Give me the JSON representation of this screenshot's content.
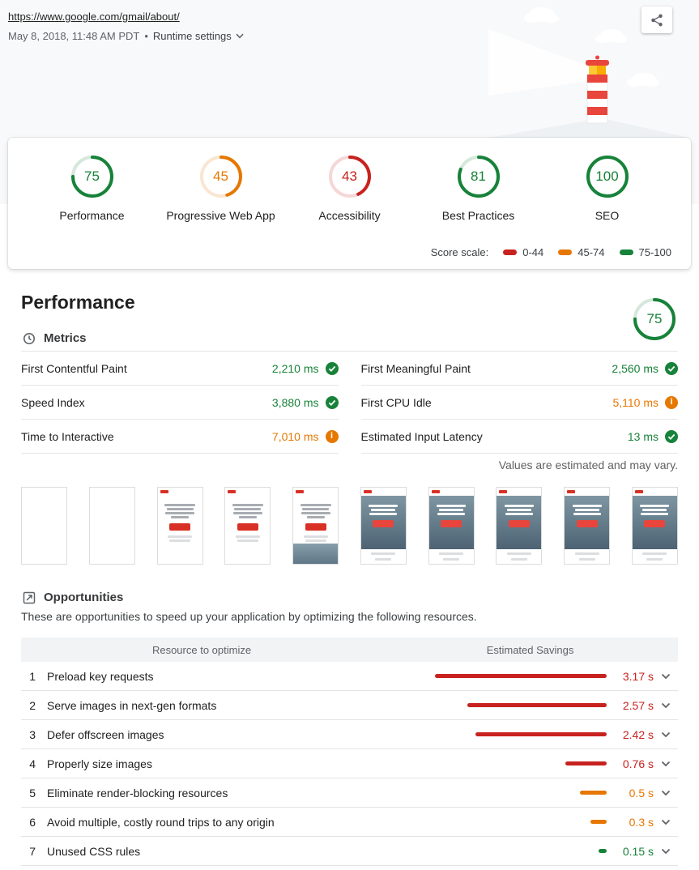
{
  "header": {
    "url": "https://www.google.com/gmail/about/",
    "meta": "May 8, 2018, 11:48 AM PDT",
    "separator": "•",
    "runtime_settings_label": "Runtime settings"
  },
  "colors": {
    "pass": "#178239",
    "average": "#e67700",
    "fail": "#c7221f"
  },
  "icons": {
    "share": "share-icon",
    "runtime_settings": "chevron-down-icon",
    "metrics": "clock-icon",
    "opportunities": "file-arrow-icon",
    "pass": "check-circle-icon",
    "average": "info-circle-icon",
    "expand": "chevron-down-icon"
  },
  "scores": {
    "gauges": [
      {
        "label": "Performance",
        "score": 75,
        "level": "pass"
      },
      {
        "label": "Progressive Web App",
        "score": 45,
        "level": "average"
      },
      {
        "label": "Accessibility",
        "score": 43,
        "level": "fail"
      },
      {
        "label": "Best Practices",
        "score": 81,
        "level": "pass"
      },
      {
        "label": "SEO",
        "score": 100,
        "level": "pass"
      }
    ],
    "scale_label": "Score scale:",
    "scale": [
      {
        "range": "0-44",
        "level": "fail"
      },
      {
        "range": "45-74",
        "level": "average"
      },
      {
        "range": "75-100",
        "level": "pass"
      }
    ]
  },
  "performance": {
    "title": "Performance",
    "score": 75,
    "level": "pass",
    "metrics_title": "Metrics",
    "metrics": [
      {
        "label": "First Contentful Paint",
        "value": "2,210 ms",
        "level": "pass"
      },
      {
        "label": "First Meaningful Paint",
        "value": "2,560 ms",
        "level": "pass"
      },
      {
        "label": "Speed Index",
        "value": "3,880 ms",
        "level": "pass"
      },
      {
        "label": "First CPU Idle",
        "value": "5,110 ms",
        "level": "average"
      },
      {
        "label": "Time to Interactive",
        "value": "7,010 ms",
        "level": "average"
      },
      {
        "label": "Estimated Input Latency",
        "value": "13 ms",
        "level": "pass"
      }
    ],
    "disclaimer": "Values are estimated and may vary.",
    "filmstrip": [
      "blank",
      "blank",
      "text",
      "text",
      "text-photo",
      "photo",
      "photo",
      "photo",
      "photo",
      "photo"
    ]
  },
  "opportunities": {
    "title": "Opportunities",
    "description": "These are opportunities to speed up your application by optimizing the following resources.",
    "col_resource": "Resource to optimize",
    "col_savings": "Estimated Savings",
    "max_value": 3.17,
    "rows": [
      {
        "index": 1,
        "label": "Preload key requests",
        "value": 3.17,
        "savings": "3.17 s",
        "level": "fail"
      },
      {
        "index": 2,
        "label": "Serve images in next-gen formats",
        "value": 2.57,
        "savings": "2.57 s",
        "level": "fail"
      },
      {
        "index": 3,
        "label": "Defer offscreen images",
        "value": 2.42,
        "savings": "2.42 s",
        "level": "fail"
      },
      {
        "index": 4,
        "label": "Properly size images",
        "value": 0.76,
        "savings": "0.76 s",
        "level": "fail"
      },
      {
        "index": 5,
        "label": "Eliminate render-blocking resources",
        "value": 0.5,
        "savings": "0.5 s",
        "level": "average"
      },
      {
        "index": 6,
        "label": "Avoid multiple, costly round trips to any origin",
        "value": 0.3,
        "savings": "0.3 s",
        "level": "average"
      },
      {
        "index": 7,
        "label": "Unused CSS rules",
        "value": 0.15,
        "savings": "0.15 s",
        "level": "pass"
      }
    ]
  }
}
